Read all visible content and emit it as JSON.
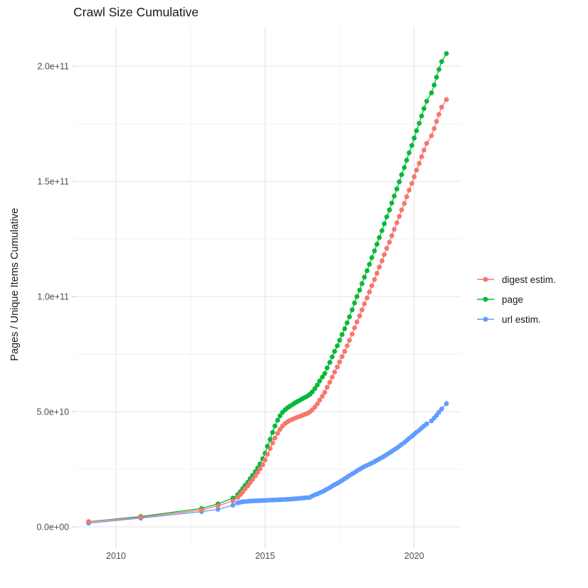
{
  "chart_data": {
    "type": "line",
    "title": "Crawl Size Cumulative",
    "xlabel": "",
    "ylabel": "Pages / Unique Items Cumulative",
    "grid": true,
    "legend_position": "right",
    "value_unit": "1e9 (billions); y tick labels shown in scientific notation",
    "x_range": [
      2008.64,
      2021.58
    ],
    "y_range_e9": [
      -7.4,
      217
    ],
    "x_ticks": [
      {
        "v": 2010,
        "label": "2010"
      },
      {
        "v": 2015,
        "label": "2015"
      },
      {
        "v": 2020,
        "label": "2020"
      }
    ],
    "x_minor": [
      2012.5,
      2017.5
    ],
    "y_ticks": [
      {
        "v": 0,
        "label": "0.0e+00"
      },
      {
        "v": 50,
        "label": "5.0e+10"
      },
      {
        "v": 100,
        "label": "1.0e+11"
      },
      {
        "v": 150,
        "label": "1.5e+11"
      },
      {
        "v": 200,
        "label": "2.0e+11"
      }
    ],
    "y_minor": [
      25,
      75,
      125,
      175
    ],
    "series": [
      {
        "name": "digest estim.",
        "color": "#F8766D",
        "z": 2,
        "points": [
          [
            2009.08,
            2.2
          ],
          [
            2010.83,
            4.2
          ],
          [
            2012.87,
            7.3
          ],
          [
            2013.42,
            9.2
          ],
          [
            2013.92,
            11.3
          ],
          [
            2014.08,
            12.8
          ],
          [
            2014.17,
            14.0
          ],
          [
            2014.25,
            15.2
          ],
          [
            2014.33,
            16.5
          ],
          [
            2014.42,
            17.8
          ],
          [
            2014.5,
            19.2
          ],
          [
            2014.58,
            20.6
          ],
          [
            2014.67,
            22.1
          ],
          [
            2014.75,
            23.6
          ],
          [
            2014.83,
            25.2
          ],
          [
            2014.92,
            27.0
          ],
          [
            2015.0,
            29.0
          ],
          [
            2015.08,
            31.5
          ],
          [
            2015.17,
            34.0
          ],
          [
            2015.25,
            36.4
          ],
          [
            2015.33,
            38.6
          ],
          [
            2015.42,
            40.6
          ],
          [
            2015.5,
            42.3
          ],
          [
            2015.58,
            43.7
          ],
          [
            2015.67,
            44.8
          ],
          [
            2015.75,
            45.6
          ],
          [
            2015.83,
            46.2
          ],
          [
            2015.92,
            46.7
          ],
          [
            2016.0,
            47.2
          ],
          [
            2016.08,
            47.6
          ],
          [
            2016.17,
            48.0
          ],
          [
            2016.25,
            48.4
          ],
          [
            2016.33,
            48.8
          ],
          [
            2016.42,
            49.3
          ],
          [
            2016.5,
            49.9
          ],
          [
            2016.58,
            50.8
          ],
          [
            2016.67,
            52.0
          ],
          [
            2016.75,
            53.4
          ],
          [
            2016.83,
            55.0
          ],
          [
            2016.92,
            56.7
          ],
          [
            2017.0,
            58.4
          ],
          [
            2017.08,
            60.6
          ],
          [
            2017.17,
            62.8
          ],
          [
            2017.25,
            65.0
          ],
          [
            2017.33,
            67.2
          ],
          [
            2017.42,
            69.4
          ],
          [
            2017.5,
            71.6
          ],
          [
            2017.58,
            73.9
          ],
          [
            2017.67,
            76.2
          ],
          [
            2017.75,
            78.6
          ],
          [
            2017.83,
            81.0
          ],
          [
            2017.92,
            83.7
          ],
          [
            2018.0,
            86.4
          ],
          [
            2018.08,
            89.0
          ],
          [
            2018.17,
            91.6
          ],
          [
            2018.25,
            94.2
          ],
          [
            2018.33,
            96.8
          ],
          [
            2018.42,
            99.4
          ],
          [
            2018.5,
            102.0
          ],
          [
            2018.58,
            104.7
          ],
          [
            2018.67,
            107.4
          ],
          [
            2018.75,
            110.1
          ],
          [
            2018.83,
            112.8
          ],
          [
            2018.92,
            115.5
          ],
          [
            2019.0,
            118.2
          ],
          [
            2019.08,
            120.9
          ],
          [
            2019.17,
            123.6
          ],
          [
            2019.25,
            126.4
          ],
          [
            2019.33,
            129.2
          ],
          [
            2019.42,
            132.0
          ],
          [
            2019.5,
            134.8
          ],
          [
            2019.58,
            137.6
          ],
          [
            2019.67,
            140.4
          ],
          [
            2019.75,
            143.3
          ],
          [
            2019.83,
            146.2
          ],
          [
            2019.92,
            149.1
          ],
          [
            2020.0,
            152.0
          ],
          [
            2020.08,
            154.9
          ],
          [
            2020.17,
            157.8
          ],
          [
            2020.25,
            160.7
          ],
          [
            2020.33,
            163.6
          ],
          [
            2020.42,
            166.5
          ],
          [
            2020.58,
            169.8
          ],
          [
            2020.67,
            172.9
          ],
          [
            2020.75,
            176.0
          ],
          [
            2020.83,
            179.1
          ],
          [
            2020.92,
            182.2
          ],
          [
            2021.08,
            185.5
          ]
        ]
      },
      {
        "name": "page",
        "color": "#00BA38",
        "z": 0,
        "points": [
          [
            2009.08,
            2.3
          ],
          [
            2010.83,
            4.5
          ],
          [
            2012.87,
            8.0
          ],
          [
            2013.42,
            10.0
          ],
          [
            2013.92,
            12.5
          ],
          [
            2014.08,
            14.0
          ],
          [
            2014.17,
            15.3
          ],
          [
            2014.25,
            16.6
          ],
          [
            2014.33,
            18.0
          ],
          [
            2014.42,
            19.4
          ],
          [
            2014.5,
            20.9
          ],
          [
            2014.58,
            22.4
          ],
          [
            2014.67,
            24.0
          ],
          [
            2014.75,
            25.6
          ],
          [
            2014.83,
            27.3
          ],
          [
            2014.92,
            29.6
          ],
          [
            2015.0,
            32.0
          ],
          [
            2015.08,
            35.0
          ],
          [
            2015.17,
            38.0
          ],
          [
            2015.25,
            41.0
          ],
          [
            2015.33,
            43.8
          ],
          [
            2015.42,
            46.3
          ],
          [
            2015.5,
            48.2
          ],
          [
            2015.58,
            49.7
          ],
          [
            2015.67,
            50.8
          ],
          [
            2015.75,
            51.7
          ],
          [
            2015.83,
            52.4
          ],
          [
            2015.92,
            53.1
          ],
          [
            2016.0,
            53.8
          ],
          [
            2016.08,
            54.4
          ],
          [
            2016.17,
            55.0
          ],
          [
            2016.25,
            55.6
          ],
          [
            2016.33,
            56.2
          ],
          [
            2016.42,
            56.8
          ],
          [
            2016.5,
            57.5
          ],
          [
            2016.58,
            58.6
          ],
          [
            2016.67,
            60.0
          ],
          [
            2016.75,
            61.6
          ],
          [
            2016.83,
            63.3
          ],
          [
            2016.92,
            65.0
          ],
          [
            2017.0,
            66.6
          ],
          [
            2017.08,
            69.0
          ],
          [
            2017.17,
            71.4
          ],
          [
            2017.25,
            73.8
          ],
          [
            2017.33,
            76.2
          ],
          [
            2017.42,
            78.6
          ],
          [
            2017.5,
            81.0
          ],
          [
            2017.58,
            83.5
          ],
          [
            2017.67,
            86.0
          ],
          [
            2017.75,
            88.6
          ],
          [
            2017.83,
            91.2
          ],
          [
            2017.92,
            94.2
          ],
          [
            2018.0,
            97.2
          ],
          [
            2018.08,
            100.0
          ],
          [
            2018.17,
            102.8
          ],
          [
            2018.25,
            105.6
          ],
          [
            2018.33,
            108.4
          ],
          [
            2018.42,
            111.2
          ],
          [
            2018.5,
            114.0
          ],
          [
            2018.58,
            116.9
          ],
          [
            2018.67,
            119.8
          ],
          [
            2018.75,
            122.7
          ],
          [
            2018.83,
            125.6
          ],
          [
            2018.92,
            128.6
          ],
          [
            2019.0,
            131.6
          ],
          [
            2019.08,
            134.6
          ],
          [
            2019.17,
            137.6
          ],
          [
            2019.25,
            140.6
          ],
          [
            2019.33,
            143.6
          ],
          [
            2019.42,
            146.7
          ],
          [
            2019.5,
            149.8
          ],
          [
            2019.58,
            152.9
          ],
          [
            2019.67,
            156.0
          ],
          [
            2019.75,
            159.2
          ],
          [
            2019.83,
            162.4
          ],
          [
            2019.92,
            165.6
          ],
          [
            2020.0,
            168.8
          ],
          [
            2020.08,
            172.0
          ],
          [
            2020.17,
            175.2
          ],
          [
            2020.25,
            178.4
          ],
          [
            2020.33,
            181.6
          ],
          [
            2020.42,
            184.8
          ],
          [
            2020.58,
            188.4
          ],
          [
            2020.67,
            191.8
          ],
          [
            2020.75,
            195.2
          ],
          [
            2020.83,
            198.6
          ],
          [
            2020.92,
            202.0
          ],
          [
            2021.08,
            205.5
          ]
        ]
      },
      {
        "name": "url estim.",
        "color": "#619CFF",
        "z": 1,
        "points": [
          [
            2009.08,
            1.6
          ],
          [
            2010.83,
            3.8
          ],
          [
            2012.87,
            6.6
          ],
          [
            2013.42,
            7.6
          ],
          [
            2013.92,
            9.4
          ],
          [
            2014.08,
            10.4
          ],
          [
            2014.17,
            10.7
          ],
          [
            2014.25,
            10.9
          ],
          [
            2014.33,
            11.0
          ],
          [
            2014.42,
            11.1
          ],
          [
            2014.5,
            11.2
          ],
          [
            2014.58,
            11.25
          ],
          [
            2014.67,
            11.3
          ],
          [
            2014.75,
            11.35
          ],
          [
            2014.83,
            11.4
          ],
          [
            2014.92,
            11.45
          ],
          [
            2015.0,
            11.5
          ],
          [
            2015.08,
            11.55
          ],
          [
            2015.17,
            11.6
          ],
          [
            2015.25,
            11.65
          ],
          [
            2015.33,
            11.7
          ],
          [
            2015.42,
            11.75
          ],
          [
            2015.5,
            11.8
          ],
          [
            2015.58,
            11.85
          ],
          [
            2015.67,
            11.9
          ],
          [
            2015.75,
            11.95
          ],
          [
            2015.83,
            12.0
          ],
          [
            2015.92,
            12.1
          ],
          [
            2016.0,
            12.2
          ],
          [
            2016.08,
            12.3
          ],
          [
            2016.17,
            12.4
          ],
          [
            2016.25,
            12.5
          ],
          [
            2016.33,
            12.6
          ],
          [
            2016.42,
            12.7
          ],
          [
            2016.5,
            12.8
          ],
          [
            2016.58,
            13.4
          ],
          [
            2016.67,
            13.9
          ],
          [
            2016.75,
            14.3
          ],
          [
            2016.83,
            14.8
          ],
          [
            2016.92,
            15.3
          ],
          [
            2017.0,
            15.8
          ],
          [
            2017.08,
            16.4
          ],
          [
            2017.17,
            17.0
          ],
          [
            2017.25,
            17.7
          ],
          [
            2017.33,
            18.3
          ],
          [
            2017.42,
            18.9
          ],
          [
            2017.5,
            19.5
          ],
          [
            2017.58,
            20.2
          ],
          [
            2017.67,
            20.9
          ],
          [
            2017.75,
            21.6
          ],
          [
            2017.83,
            22.3
          ],
          [
            2017.92,
            23.0
          ],
          [
            2018.0,
            23.6
          ],
          [
            2018.08,
            24.3
          ],
          [
            2018.17,
            25.0
          ],
          [
            2018.25,
            25.6
          ],
          [
            2018.33,
            26.2
          ],
          [
            2018.42,
            26.7
          ],
          [
            2018.5,
            27.2
          ],
          [
            2018.58,
            27.7
          ],
          [
            2018.67,
            28.3
          ],
          [
            2018.75,
            28.9
          ],
          [
            2018.83,
            29.5
          ],
          [
            2018.92,
            30.1
          ],
          [
            2019.0,
            30.7
          ],
          [
            2019.08,
            31.4
          ],
          [
            2019.17,
            32.1
          ],
          [
            2019.25,
            32.8
          ],
          [
            2019.33,
            33.5
          ],
          [
            2019.42,
            34.2
          ],
          [
            2019.5,
            35.0
          ],
          [
            2019.58,
            35.8
          ],
          [
            2019.67,
            36.6
          ],
          [
            2019.75,
            37.5
          ],
          [
            2019.83,
            38.4
          ],
          [
            2019.92,
            39.3
          ],
          [
            2020.0,
            40.2
          ],
          [
            2020.08,
            41.1
          ],
          [
            2020.17,
            42.0
          ],
          [
            2020.25,
            42.9
          ],
          [
            2020.33,
            43.8
          ],
          [
            2020.42,
            44.7
          ],
          [
            2020.58,
            46.0
          ],
          [
            2020.67,
            47.2
          ],
          [
            2020.75,
            48.4
          ],
          [
            2020.83,
            49.8
          ],
          [
            2020.92,
            51.2
          ],
          [
            2021.08,
            53.5
          ]
        ]
      }
    ]
  }
}
